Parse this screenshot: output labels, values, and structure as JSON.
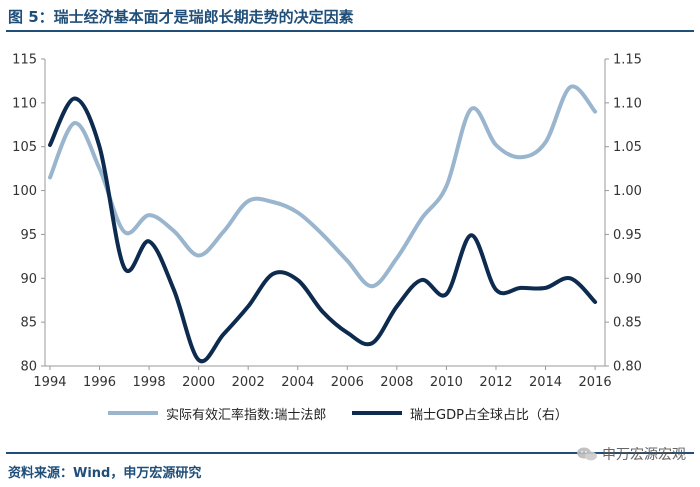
{
  "header": {
    "title": "图 5：瑞士经济基本面才是瑞郎长期走势的决定因素"
  },
  "chart_data": {
    "type": "line",
    "title": "图 5：瑞士经济基本面才是瑞郎长期走势的决定因素",
    "x_ticks": [
      "1994",
      "1996",
      "1998",
      "2000",
      "2002",
      "2004",
      "2006",
      "2008",
      "2010",
      "2012",
      "2014",
      "2016"
    ],
    "xlim": [
      1993.8,
      2016.4
    ],
    "left_axis": {
      "ylim": [
        80,
        115
      ],
      "ticks": [
        "80",
        "85",
        "90",
        "95",
        "100",
        "105",
        "110",
        "115"
      ]
    },
    "right_axis": {
      "ylim": [
        0.8,
        1.15
      ],
      "ticks": [
        "0.80",
        "0.85",
        "0.90",
        "0.95",
        "1.00",
        "1.05",
        "1.10",
        "1.15"
      ]
    },
    "grid": false,
    "legend_position": "bottom",
    "series": [
      {
        "name": "实际有效汇率指数:瑞士法郎",
        "axis": "left",
        "color": "#9ab5ce",
        "x": [
          1994,
          1995,
          1996,
          1997,
          1998,
          1999,
          2000,
          2001,
          2002,
          2003,
          2004,
          2005,
          2006,
          2007,
          2008,
          2009,
          2010,
          2011,
          2012,
          2013,
          2014,
          2015,
          2016
        ],
        "values": [
          101.5,
          107.7,
          102.5,
          95.3,
          97.2,
          95.4,
          92.6,
          95.3,
          98.8,
          98.7,
          97.5,
          95.0,
          92.0,
          89.1,
          92.3,
          96.8,
          100.5,
          109.3,
          105.2,
          103.8,
          105.5,
          111.8,
          109.0
        ]
      },
      {
        "name": "瑞士GDP占全球占比（右）",
        "axis": "right",
        "color": "#0d2a4f",
        "x": [
          1994,
          1995,
          1996,
          1997,
          1998,
          1999,
          2000,
          2001,
          2002,
          2003,
          2004,
          2005,
          2006,
          2007,
          2008,
          2009,
          2010,
          2011,
          2012,
          2013,
          2014,
          2015,
          2016
        ],
        "values": [
          1.052,
          1.105,
          1.05,
          0.912,
          0.942,
          0.887,
          0.807,
          0.836,
          0.868,
          0.905,
          0.898,
          0.862,
          0.838,
          0.826,
          0.868,
          0.898,
          0.882,
          0.949,
          0.887,
          0.889,
          0.889,
          0.9,
          0.873
        ]
      }
    ]
  },
  "source": {
    "text": "资料来源：Wind，申万宏源研究"
  },
  "watermark": {
    "text": "申万宏源宏观"
  }
}
